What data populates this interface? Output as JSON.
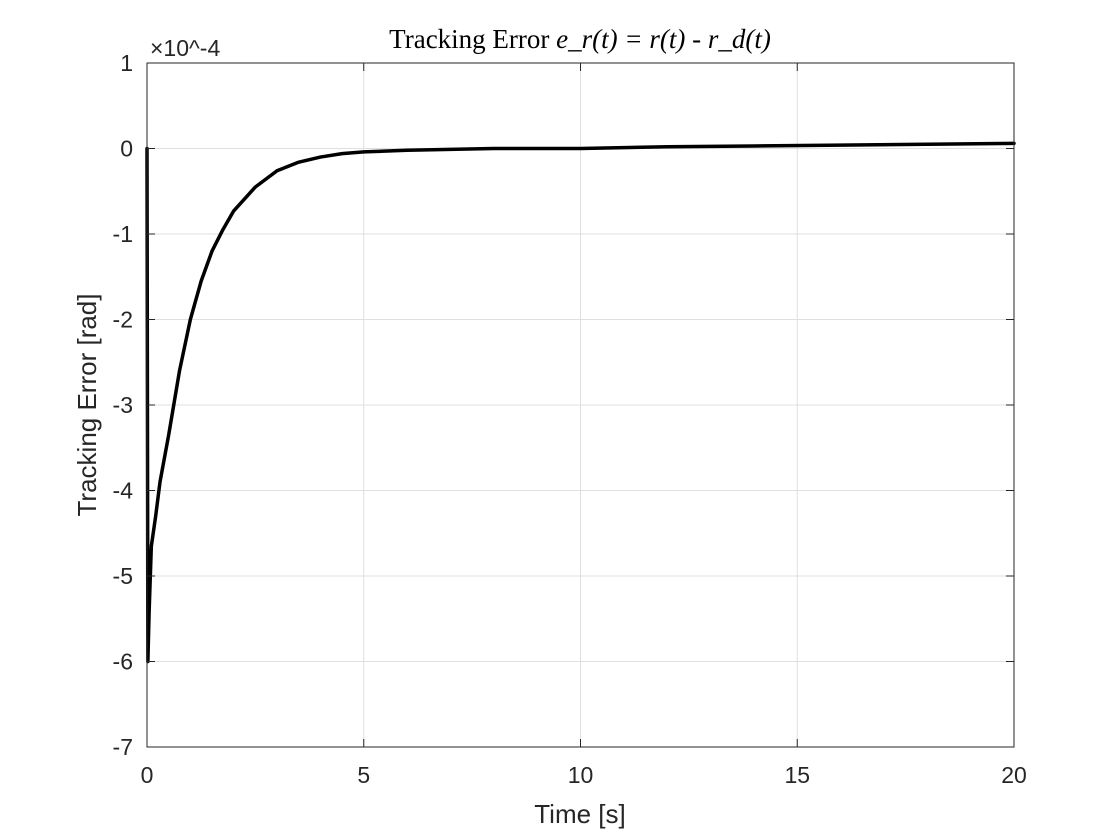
{
  "chart_data": {
    "type": "line",
    "title": {
      "prefix": "Tracking Error ",
      "math": "e_r(t) = r(t) - r_d(t)"
    },
    "xlabel": "Time [s]",
    "ylabel": "Tracking Error [rad]",
    "xlim": [
      0,
      20
    ],
    "ylim": [
      -7,
      1
    ],
    "y_scale_exponent": "×10^-4",
    "x_ticks": [
      0,
      5,
      10,
      15,
      20
    ],
    "x_tick_labels": [
      "0",
      "5",
      "10",
      "15",
      "20"
    ],
    "y_ticks": [
      1,
      0,
      -1,
      -2,
      -3,
      -4,
      -5,
      -6,
      -7
    ],
    "y_tick_labels": [
      "1",
      "0",
      "-1",
      "-2",
      "-3",
      "-4",
      "-5",
      "-6",
      "-7"
    ],
    "grid": true,
    "series": [
      {
        "color": "#000000",
        "x": [
          0,
          0.02,
          0.05,
          0.1,
          0.2,
          0.3,
          0.5,
          0.75,
          1.0,
          1.25,
          1.5,
          1.75,
          2.0,
          2.5,
          3.0,
          3.5,
          4.0,
          4.5,
          5.0,
          6.0,
          7.0,
          8.0,
          10.0,
          12.0,
          14.0,
          16.0,
          18.0,
          20.0
        ],
        "y": [
          0,
          -6.0,
          -5.4,
          -4.65,
          -4.3,
          -3.9,
          -3.35,
          -2.6,
          -2.0,
          -1.55,
          -1.2,
          -0.95,
          -0.73,
          -0.45,
          -0.26,
          -0.16,
          -0.1,
          -0.06,
          -0.04,
          -0.02,
          -0.01,
          0.0,
          0.0,
          0.02,
          0.03,
          0.04,
          0.05,
          0.06
        ]
      }
    ]
  }
}
